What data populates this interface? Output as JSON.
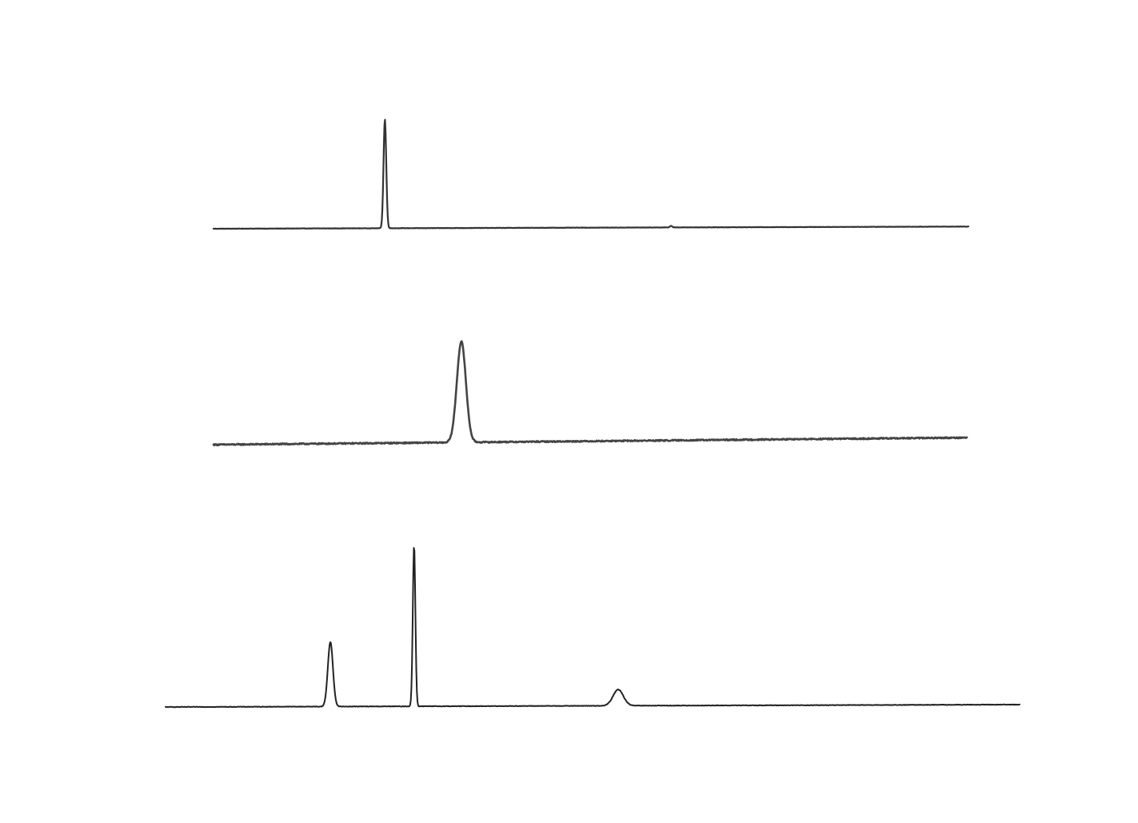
{
  "chart_data": [
    {
      "type": "line",
      "title": "",
      "xlabel": "",
      "ylabel": "",
      "grid": false,
      "legend": "none",
      "xlim": [
        0,
        100
      ],
      "ylim": [
        0,
        1
      ],
      "baseline": {
        "start": 0.0,
        "end": 0.02
      },
      "noise": 0.003,
      "peaks": [
        {
          "x": 22.7,
          "height": 1.0,
          "width": 0.18
        },
        {
          "x": 60.6,
          "height": 0.015,
          "width": 0.15
        }
      ],
      "color": "#333333"
    },
    {
      "type": "line",
      "title": "",
      "xlabel": "",
      "ylabel": "",
      "grid": false,
      "legend": "none",
      "xlim": [
        0,
        100
      ],
      "ylim": [
        0,
        1
      ],
      "baseline": {
        "start": 0.0,
        "end": 0.07
      },
      "noise": 0.012,
      "peaks": [
        {
          "x": 32.9,
          "height": 1.0,
          "width": 0.6
        }
      ],
      "color": "#444444"
    },
    {
      "type": "line",
      "title": "",
      "xlabel": "",
      "ylabel": "",
      "grid": false,
      "legend": "none",
      "xlim": [
        0,
        100
      ],
      "ylim": [
        0,
        1
      ],
      "baseline": {
        "start": 0.0,
        "end": 0.015
      },
      "noise": 0.003,
      "peaks": [
        {
          "x": 19.3,
          "height": 0.4,
          "width": 0.3
        },
        {
          "x": 29.1,
          "height": 1.0,
          "width": 0.15
        },
        {
          "x": 53.0,
          "height": 0.1,
          "width": 0.6
        }
      ],
      "color": "#222222"
    }
  ]
}
